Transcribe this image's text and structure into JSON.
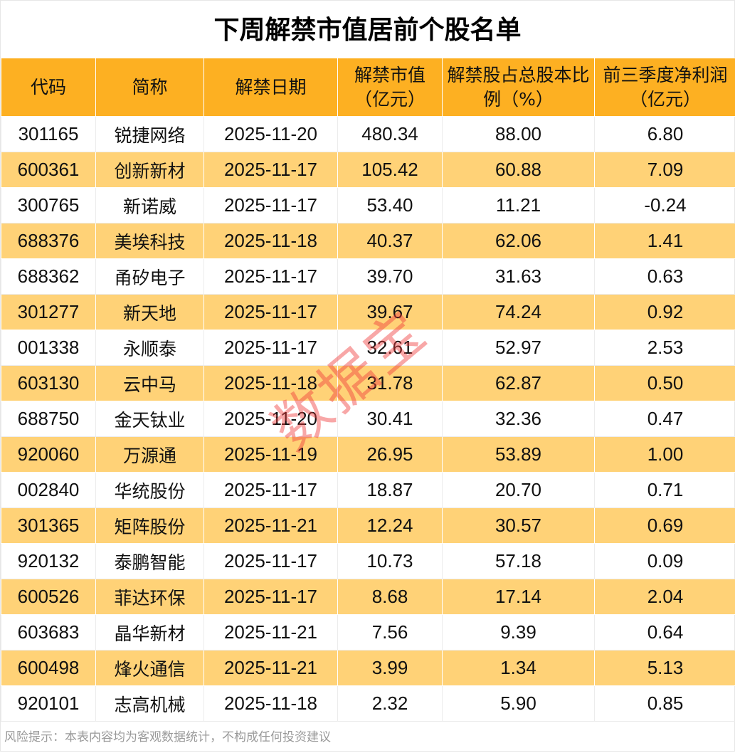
{
  "title": "下周解禁市值居前个股名单",
  "headers": [
    "代码",
    "简称",
    "解禁日期",
    "解禁市值（亿元）",
    "解禁股占总股本比例（%）",
    "前三季度净利润（亿元）"
  ],
  "rows": [
    [
      "301165",
      "锐捷网络",
      "2025-11-20",
      "480.34",
      "88.00",
      "6.80"
    ],
    [
      "600361",
      "创新新材",
      "2025-11-17",
      "105.42",
      "60.88",
      "7.09"
    ],
    [
      "300765",
      "新诺威",
      "2025-11-17",
      "53.40",
      "11.21",
      "-0.24"
    ],
    [
      "688376",
      "美埃科技",
      "2025-11-18",
      "40.37",
      "62.06",
      "1.41"
    ],
    [
      "688362",
      "甬矽电子",
      "2025-11-17",
      "39.70",
      "31.63",
      "0.63"
    ],
    [
      "301277",
      "新天地",
      "2025-11-17",
      "39.67",
      "74.24",
      "0.92"
    ],
    [
      "001338",
      "永顺泰",
      "2025-11-17",
      "32.61",
      "52.97",
      "2.53"
    ],
    [
      "603130",
      "云中马",
      "2025-11-18",
      "31.78",
      "62.87",
      "0.50"
    ],
    [
      "688750",
      "金天钛业",
      "2025-11-20",
      "30.41",
      "32.36",
      "0.47"
    ],
    [
      "920060",
      "万源通",
      "2025-11-19",
      "26.95",
      "53.89",
      "1.00"
    ],
    [
      "002840",
      "华统股份",
      "2025-11-17",
      "18.87",
      "20.70",
      "0.71"
    ],
    [
      "301365",
      "矩阵股份",
      "2025-11-21",
      "12.24",
      "30.57",
      "0.69"
    ],
    [
      "920132",
      "泰鹏智能",
      "2025-11-17",
      "10.73",
      "57.18",
      "0.09"
    ],
    [
      "600526",
      "菲达环保",
      "2025-11-17",
      "8.68",
      "17.14",
      "2.04"
    ],
    [
      "603683",
      "晶华新材",
      "2025-11-21",
      "7.56",
      "9.39",
      "0.64"
    ],
    [
      "600498",
      "烽火通信",
      "2025-11-21",
      "3.99",
      "1.34",
      "5.13"
    ],
    [
      "920101",
      "志高机械",
      "2025-11-18",
      "2.32",
      "5.90",
      "0.85"
    ]
  ],
  "footer": "风险提示：本表内容均为客观数据统计，不构成任何投资建议",
  "watermark": "数据宝",
  "colors": {
    "header": "#fdb022",
    "alt_row": "#ffd277",
    "watermark": "#f03c3c"
  }
}
